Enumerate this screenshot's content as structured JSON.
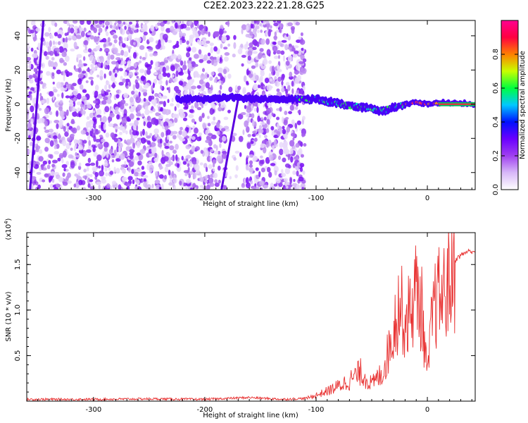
{
  "title": "C2E2.2023.222.21.28.G25",
  "chart_data": [
    {
      "type": "heatmap",
      "xlabel": "Height of straight line (km)",
      "ylabel": "Frequency (Hz)",
      "xlim": [
        -360,
        43
      ],
      "ylim": [
        -50,
        49
      ],
      "xticks": [
        -300,
        -200,
        -100,
        0
      ],
      "yticks": [
        -40,
        -20,
        0,
        20,
        40
      ],
      "colorbar": {
        "label": "Normalized spectral amplitude",
        "range": [
          0,
          1
        ],
        "ticks": [
          0.0,
          0.2,
          0.4,
          0.6,
          0.8
        ],
        "colormap": [
          "#ffffff",
          "#d8b8f8",
          "#a040f0",
          "#6a00ff",
          "#0010ff",
          "#00c8ff",
          "#00ff40",
          "#c8ff00",
          "#ff8000",
          "#ff0040",
          "#ff0090"
        ]
      },
      "signal_track": [
        {
          "x": -225,
          "y": 3
        },
        {
          "x": -200,
          "y": 3
        },
        {
          "x": -175,
          "y": 4
        },
        {
          "x": -150,
          "y": 3
        },
        {
          "x": -125,
          "y": 3
        },
        {
          "x": -100,
          "y": 3
        },
        {
          "x": -85,
          "y": 1
        },
        {
          "x": -70,
          "y": -1
        },
        {
          "x": -55,
          "y": -2
        },
        {
          "x": -40,
          "y": -4
        },
        {
          "x": -30,
          "y": -2
        },
        {
          "x": -20,
          "y": 0
        },
        {
          "x": -10,
          "y": 1
        },
        {
          "x": 0,
          "y": 0
        },
        {
          "x": 15,
          "y": 1
        },
        {
          "x": 43,
          "y": 0
        }
      ]
    },
    {
      "type": "line",
      "xlabel": "Height of straight line (km)",
      "ylabel": "SNR (10 * v/v)",
      "yscale_label": "(x10",
      "yscale_exp": "4",
      "yscale_close": ")",
      "xlim": [
        -360,
        43
      ],
      "ylim": [
        0,
        18500
      ],
      "xticks": [
        -300,
        -200,
        -100,
        0
      ],
      "yticks": [
        5000,
        10000,
        15000
      ],
      "ytick_labels": [
        "0.5",
        "1.0",
        "1.5"
      ],
      "color": "#e83030",
      "series": [
        {
          "x": [
            -360,
            -300,
            -250,
            -200,
            -160,
            -130,
            -110,
            -100,
            -90,
            -80,
            -70,
            -60,
            -50,
            -40,
            -35,
            -30,
            -25,
            -20,
            -15,
            -10,
            -5,
            0,
            5,
            10,
            15,
            20,
            25,
            30,
            35,
            43
          ],
          "y": [
            200,
            200,
            250,
            200,
            400,
            200,
            300,
            700,
            1200,
            1800,
            2500,
            3500,
            2000,
            3500,
            6000,
            9000,
            12000,
            9500,
            11000,
            13500,
            11000,
            3000,
            11000,
            12500,
            13000,
            14500,
            15500,
            16000,
            16400,
            16500
          ]
        }
      ]
    }
  ]
}
